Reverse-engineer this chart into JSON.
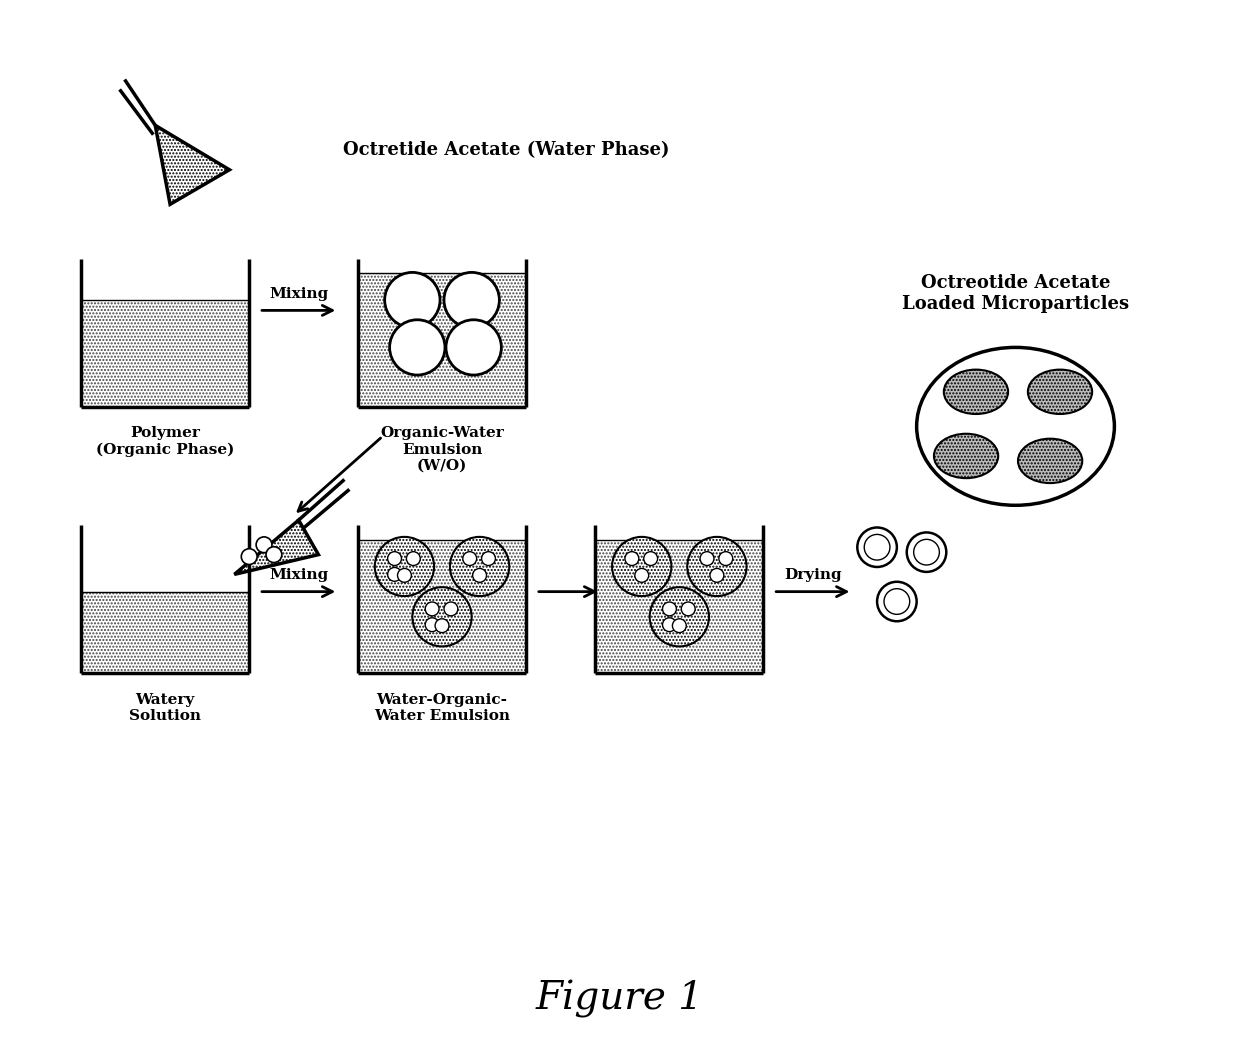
{
  "bg_color": "#ffffff",
  "title": "Figure 1",
  "label_octretide_acetate": "Octretide Acetate (Water Phase)",
  "label_polymer": "Polymer\n(Organic Phase)",
  "label_ow_emulsion": "Organic-Water\nEmulsion\n(W/O)",
  "label_watery": "Watery\nSolution",
  "label_wow_emulsion": "Water-Organic-\nWater Emulsion",
  "label_microparticles": "Octreotide Acetate\nLoaded Microparticles",
  "label_mixing1": "Mixing",
  "label_mixing2": "Mixing",
  "label_drying": "Drying",
  "hatch": "....."
}
